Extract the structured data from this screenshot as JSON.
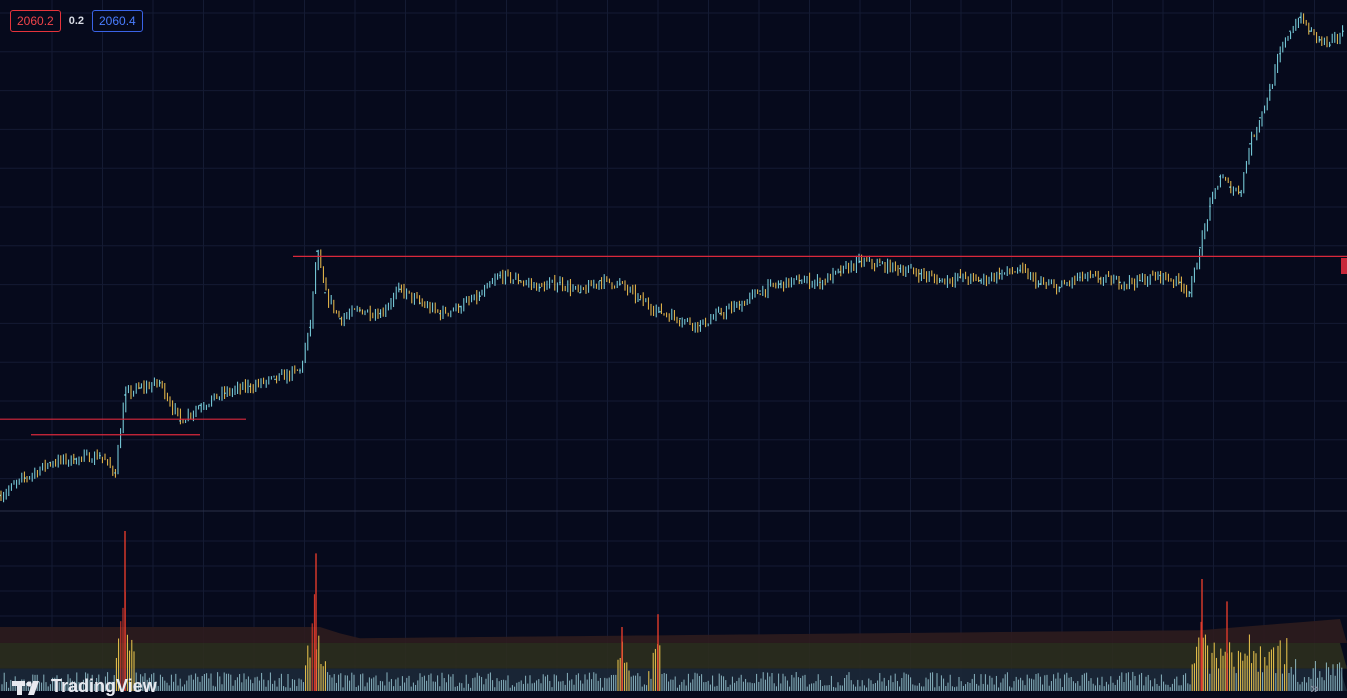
{
  "quote": {
    "bid": "2060.2",
    "spread": "0.2",
    "ask": "2060.4"
  },
  "watermark": {
    "text": "TradingView",
    "icon": "tradingview-logo-icon"
  },
  "colors": {
    "background": "#060a1c",
    "grid": "#141b33",
    "candle_bull": "#7fd8e6",
    "candle_bear": "#f2c14e",
    "level_line": "#d9283b",
    "bid_red": "#f1444a",
    "ask_blue": "#4a7dff",
    "volume_normal": "#aee3ee",
    "volume_high": "#f0c94e",
    "volume_extreme": "#e03a2c"
  },
  "chart_data": [
    {
      "type": "line",
      "title": "",
      "series": [
        {
          "x": [
            0,
            25,
            50,
            75,
            100,
            115,
            125,
            140,
            160,
            180,
            200,
            225,
            250,
            275,
            300,
            310,
            317,
            325,
            340,
            360,
            380,
            400,
            420,
            440,
            460,
            480,
            500,
            520,
            540,
            560,
            580,
            600,
            620,
            640,
            660,
            680,
            700,
            720,
            740,
            760,
            780,
            800,
            820,
            840,
            860,
            880,
            900,
            920,
            940,
            960,
            980,
            1000,
            1020,
            1040,
            1060,
            1080,
            1100,
            1120,
            1140,
            1160,
            1180,
            1190,
            1200,
            1210,
            1220,
            1230,
            1240,
            1250,
            1260,
            1270,
            1280,
            1290,
            1300,
            1310,
            1320,
            1330,
            1343
          ],
          "values": [
            2005.8,
            2007.8,
            2009.6,
            2010.0,
            2010.4,
            2008.4,
            2017.4,
            2018.2,
            2018.8,
            2014.4,
            2016.2,
            2017.6,
            2018.4,
            2019.2,
            2020.2,
            2025.2,
            2034.0,
            2029.2,
            2026.2,
            2027.2,
            2026.8,
            2029.6,
            2028.0,
            2026.8,
            2027.6,
            2028.8,
            2031.2,
            2030.6,
            2029.8,
            2030.4,
            2029.2,
            2030.6,
            2030.2,
            2028.4,
            2027.0,
            2026.2,
            2025.4,
            2026.8,
            2027.8,
            2029.4,
            2030.2,
            2030.6,
            2030.4,
            2031.6,
            2032.8,
            2032.4,
            2032.0,
            2031.4,
            2030.6,
            2031.0,
            2030.6,
            2031.4,
            2031.8,
            2030.2,
            2029.8,
            2031.0,
            2030.8,
            2030.4,
            2030.6,
            2031.2,
            2030.4,
            2029.2,
            2034.4,
            2039.2,
            2042.6,
            2041.4,
            2040.8,
            2046.4,
            2049.4,
            2052.6,
            2056.8,
            2059.4,
            2061.0,
            2059.4,
            2058.4,
            2057.8,
            2059.4
          ]
        }
      ],
      "levels": [
        2033.4,
        2014.6,
        2012.8
      ]
    },
    {
      "type": "bar",
      "title": "",
      "volume_peaks": [
        {
          "x": 125,
          "value": 100
        },
        {
          "x": 316,
          "value": 86
        },
        {
          "x": 622,
          "value": 40
        },
        {
          "x": 658,
          "value": 48
        },
        {
          "x": 1202,
          "value": 70
        },
        {
          "x": 1227,
          "value": 56
        }
      ],
      "bands": [
        {
          "from": 0,
          "to": 14,
          "color": "#1c2838"
        },
        {
          "from": 14,
          "to": 30,
          "color": "#2c2e1e"
        },
        {
          "from": 30,
          "to": 46,
          "color": "#2e1c1e"
        }
      ]
    }
  ]
}
